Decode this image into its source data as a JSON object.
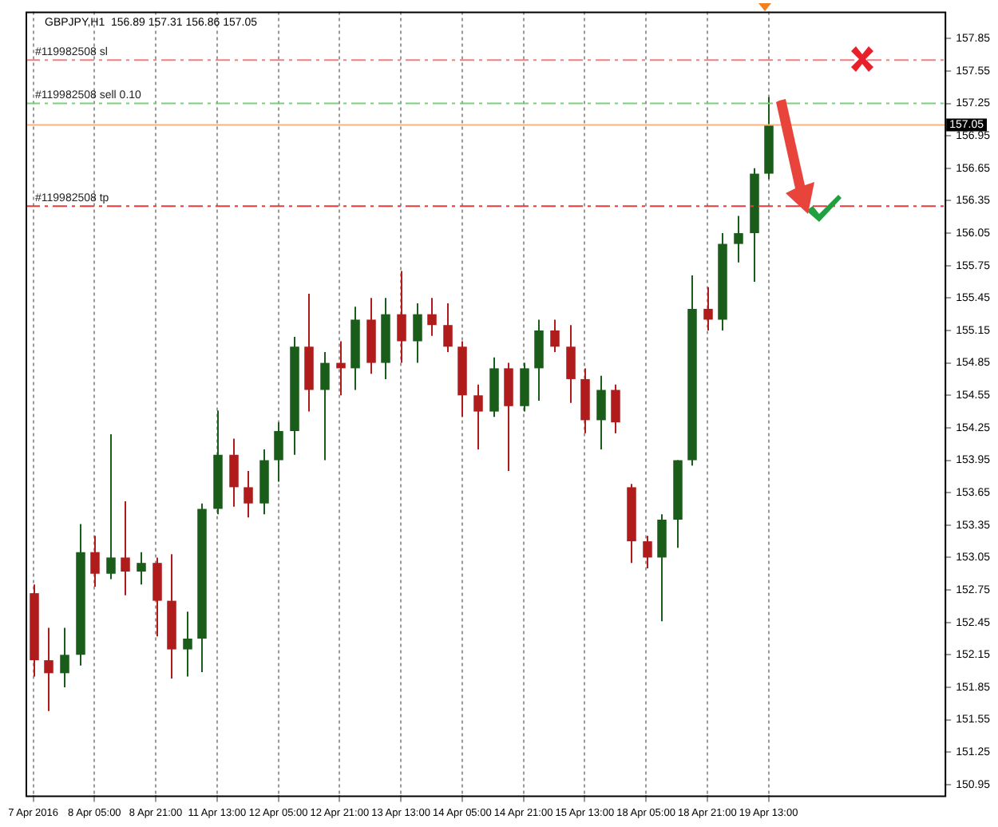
{
  "chart_data": {
    "type": "candlestick",
    "title": "GBPJPY,H1  156.89 157.31 156.86 157.05",
    "categories": [
      "7 Apr 2016",
      null,
      null,
      null,
      "8 Apr 05:00",
      null,
      null,
      null,
      "8 Apr 21:00",
      null,
      null,
      null,
      "11 Apr 13:00",
      null,
      null,
      null,
      "12 Apr 05:00",
      null,
      null,
      null,
      "12 Apr 21:00",
      null,
      null,
      null,
      "13 Apr 13:00",
      null,
      null,
      null,
      "14 Apr 05:00",
      null,
      null,
      null,
      "14 Apr 21:00",
      null,
      null,
      null,
      "15 Apr 13:00",
      null,
      null,
      null,
      "18 Apr 05:00",
      null,
      null,
      null,
      "18 Apr 21:00",
      null,
      null,
      null,
      "19 Apr 13:00",
      null,
      null,
      null,
      null,
      null,
      null,
      null,
      null,
      null,
      null,
      null
    ],
    "ohlc": [
      [
        152.72,
        152.8,
        151.95,
        152.1
      ],
      [
        152.1,
        152.4,
        151.63,
        151.98
      ],
      [
        151.98,
        152.4,
        151.85,
        152.15
      ],
      [
        152.15,
        153.36,
        152.05,
        153.1
      ],
      [
        153.1,
        153.25,
        152.78,
        152.9
      ],
      [
        152.9,
        154.19,
        152.85,
        153.05
      ],
      [
        153.05,
        153.57,
        152.7,
        152.92
      ],
      [
        152.92,
        153.1,
        152.8,
        153.0
      ],
      [
        153.0,
        153.05,
        152.32,
        152.65
      ],
      [
        152.65,
        153.08,
        151.93,
        152.2
      ],
      [
        152.2,
        152.55,
        151.95,
        152.3
      ],
      [
        152.3,
        153.55,
        151.99,
        153.5
      ],
      [
        153.5,
        154.41,
        153.45,
        154.0
      ],
      [
        154.0,
        154.15,
        153.52,
        153.7
      ],
      [
        153.7,
        153.85,
        153.42,
        153.55
      ],
      [
        153.55,
        154.05,
        153.45,
        153.95
      ],
      [
        153.95,
        154.3,
        153.75,
        154.22
      ],
      [
        154.22,
        155.09,
        154.0,
        155.0
      ],
      [
        155.0,
        155.49,
        154.4,
        154.6
      ],
      [
        154.6,
        154.95,
        153.95,
        154.85
      ],
      [
        154.85,
        155.05,
        154.55,
        154.8
      ],
      [
        154.8,
        155.37,
        154.6,
        155.25
      ],
      [
        155.25,
        155.45,
        154.75,
        154.85
      ],
      [
        154.85,
        155.45,
        154.7,
        155.3
      ],
      [
        155.3,
        155.7,
        154.85,
        155.05
      ],
      [
        155.05,
        155.4,
        154.85,
        155.3
      ],
      [
        155.3,
        155.45,
        155.1,
        155.2
      ],
      [
        155.2,
        155.4,
        154.95,
        155.0
      ],
      [
        155.0,
        155.05,
        154.35,
        154.55
      ],
      [
        154.55,
        154.65,
        154.05,
        154.4
      ],
      [
        154.4,
        154.9,
        154.35,
        154.8
      ],
      [
        154.8,
        154.85,
        153.85,
        154.45
      ],
      [
        154.45,
        154.85,
        154.4,
        154.8
      ],
      [
        154.8,
        155.25,
        154.5,
        155.15
      ],
      [
        155.15,
        155.25,
        154.95,
        155.0
      ],
      [
        155.0,
        155.2,
        154.48,
        154.7
      ],
      [
        154.7,
        154.8,
        154.2,
        154.32
      ],
      [
        154.32,
        154.73,
        154.05,
        154.6
      ],
      [
        154.6,
        154.65,
        154.2,
        154.3
      ],
      [
        153.7,
        153.73,
        153.0,
        153.2
      ],
      [
        153.2,
        153.25,
        152.95,
        153.05
      ],
      [
        153.05,
        153.45,
        152.46,
        153.4
      ],
      [
        153.4,
        153.95,
        153.14,
        153.95
      ],
      [
        153.95,
        155.66,
        153.9,
        155.35
      ],
      [
        155.35,
        155.55,
        155.15,
        155.25
      ],
      [
        155.25,
        156.05,
        155.15,
        155.95
      ],
      [
        155.95,
        156.21,
        155.78,
        156.05
      ],
      [
        156.05,
        156.65,
        155.6,
        156.6
      ],
      [
        156.6,
        157.31,
        156.55,
        157.05
      ],
      null,
      null,
      null,
      null,
      null,
      null,
      null,
      null,
      null,
      null,
      null
    ],
    "colors": [
      "#b01c1c",
      "#b01c1c",
      "#1a5c1a",
      "#1a5c1a",
      "#b01c1c",
      "#1a5c1a",
      "#b01c1c",
      "#1a5c1a",
      "#b01c1c",
      "#b01c1c",
      "#1a5c1a",
      "#1a5c1a",
      "#1a5c1a",
      "#b01c1c",
      "#b01c1c",
      "#1a5c1a",
      "#1a5c1a",
      "#1a5c1a",
      "#b01c1c",
      "#1a5c1a",
      "#b01c1c",
      "#1a5c1a",
      "#b01c1c",
      "#1a5c1a",
      "#b01c1c",
      "#1a5c1a",
      "#b01c1c",
      "#b01c1c",
      "#b01c1c",
      "#b01c1c",
      "#1a5c1a",
      "#b01c1c",
      "#1a5c1a",
      "#1a5c1a",
      "#b01c1c",
      "#b01c1c",
      "#b01c1c",
      "#1a5c1a",
      "#b01c1c",
      "#b01c1c",
      "#b01c1c",
      "#1a5c1a",
      "#1a5c1a",
      "#1a5c1a",
      "#b01c1c",
      "#1a5c1a",
      "#1a5c1a",
      "#1a5c1a",
      "#1a5c1a",
      null,
      null,
      null,
      null,
      null,
      null,
      null,
      null,
      null,
      null,
      null
    ],
    "ylim": [
      150.85,
      158.1
    ],
    "yticks": [
      150.95,
      151.25,
      151.55,
      151.85,
      152.15,
      152.45,
      152.75,
      153.05,
      153.35,
      153.65,
      153.95,
      154.25,
      154.55,
      154.85,
      155.15,
      155.45,
      155.75,
      156.05,
      156.35,
      156.65,
      156.95,
      157.25,
      157.55,
      157.85
    ],
    "grid": "x",
    "ref_lines": [
      {
        "axis": "y",
        "value": 157.65,
        "label": "#119982508 sl",
        "color": "#f08080",
        "line_style": "dashed"
      },
      {
        "axis": "y",
        "value": 157.25,
        "label": "#119982508 sell 0.10",
        "color": "#7ccf7c",
        "line_style": "dashed"
      },
      {
        "axis": "y",
        "value": 157.05,
        "label": "157.05",
        "color": "#ffb27a",
        "line_style": "solid"
      },
      {
        "axis": "y",
        "value": 156.3,
        "label": "#119982508 tp",
        "color": "#e83c3c",
        "line_style": "dashed"
      }
    ]
  }
}
